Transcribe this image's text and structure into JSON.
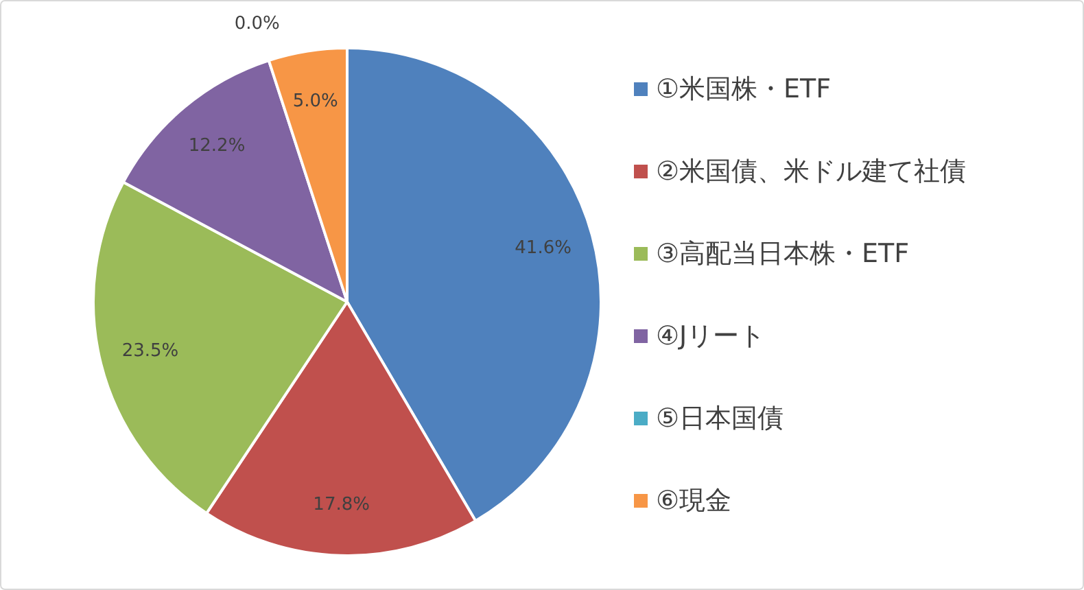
{
  "chart_data": {
    "type": "pie",
    "categories": [
      "①米国株・ETF",
      "②米国債、米ドル建て社債",
      "③高配当日本株・ETF",
      "④Jリート",
      "⑤日本国債",
      "⑥現金"
    ],
    "values": [
      41.6,
      17.8,
      23.5,
      12.2,
      0.0,
      5.0
    ],
    "value_labels": [
      "41.6%",
      "17.8%",
      "23.5%",
      "12.2%",
      "0.0%",
      "5.0%"
    ],
    "colors": [
      "#4f81bd",
      "#c0504d",
      "#9bbb59",
      "#8064a2",
      "#4bacc6",
      "#f79646"
    ],
    "legend": "right"
  }
}
